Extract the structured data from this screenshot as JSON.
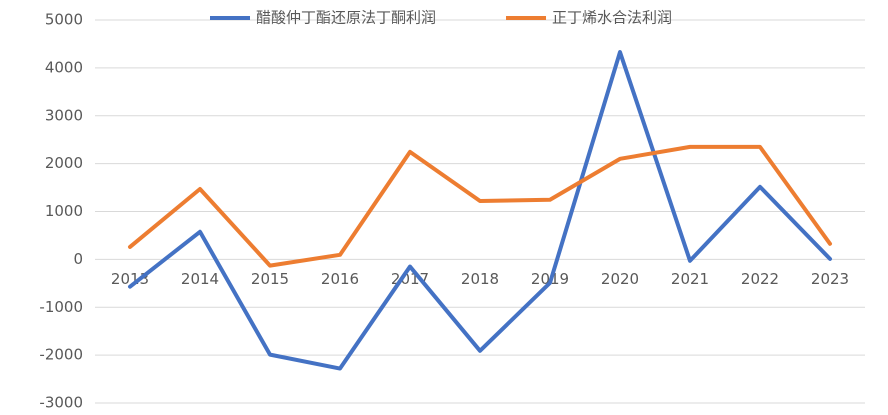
{
  "chart_data": {
    "type": "line",
    "categories": [
      "2013",
      "2014",
      "2015",
      "2016",
      "2017",
      "2018",
      "2019",
      "2020",
      "2021",
      "2022",
      "2023"
    ],
    "series": [
      {
        "name": "醋酸仲丁酯还原法丁酮利润",
        "color": "#4472c4",
        "values": [
          -570,
          576,
          -1990,
          -2280,
          -150,
          -1910,
          -490,
          4330,
          -30,
          1515,
          10
        ]
      },
      {
        "name": "正丁烯水合法利润",
        "color": "#ed7d31",
        "values": [
          260,
          1470,
          -130,
          95,
          2245,
          1220,
          1245,
          2100,
          2350,
          2350,
          325
        ]
      }
    ],
    "ylim": [
      -3000,
      5000
    ],
    "yticks": [
      -3000,
      -2000,
      -1000,
      0,
      1000,
      2000,
      3000,
      4000,
      5000
    ],
    "grid": true,
    "legend": "top"
  }
}
